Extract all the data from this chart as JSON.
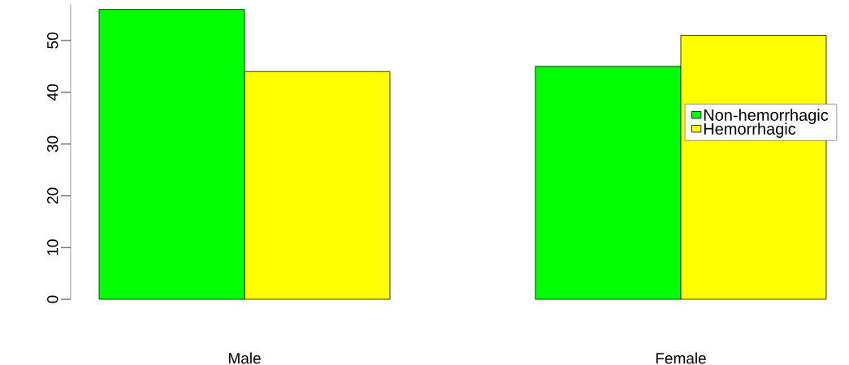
{
  "chart_data": {
    "type": "bar",
    "categories": [
      "Male",
      "Female"
    ],
    "series": [
      {
        "name": "Non-hemorrhagic",
        "color": "#00ff00",
        "values": [
          56,
          45
        ]
      },
      {
        "name": "Hemorrhagic",
        "color": "#ffff00",
        "values": [
          44,
          51
        ]
      }
    ],
    "ylim": [
      0,
      57
    ],
    "yticks": [
      0,
      10,
      20,
      30,
      40,
      50
    ],
    "grid": false,
    "legend": "right"
  }
}
